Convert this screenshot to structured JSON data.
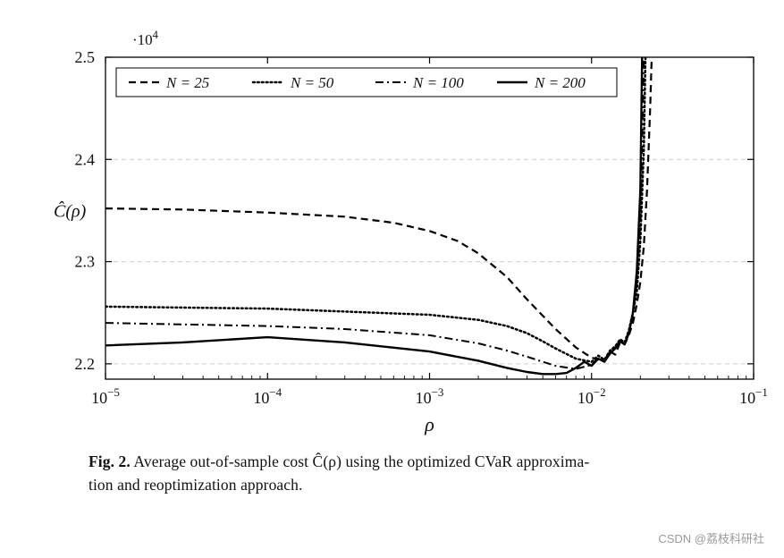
{
  "chart_data": {
    "type": "line",
    "title": "",
    "xlabel": "ρ",
    "ylabel": "Ĉ(ρ)",
    "y_multiplier": {
      "base": "·10",
      "exp": "4"
    },
    "x_scale": "log",
    "xlim": [
      1e-05,
      0.1
    ],
    "ylim": [
      2.185,
      2.5
    ],
    "x_tick_exponents": [
      -5,
      -4,
      -3,
      -2,
      -1
    ],
    "y_ticks": [
      2.2,
      2.3,
      2.4,
      2.5
    ],
    "grid_y": [
      2.2,
      2.3,
      2.4
    ],
    "grid_color": "#cccccc",
    "line_color": "#000000",
    "legend_position": "top-inside",
    "series": [
      {
        "name": "N = 25",
        "dash": "dashed",
        "points": [
          [
            1e-05,
            2.352
          ],
          [
            3e-05,
            2.351
          ],
          [
            0.0001,
            2.348
          ],
          [
            0.0003,
            2.344
          ],
          [
            0.0006,
            2.338
          ],
          [
            0.001,
            2.33
          ],
          [
            0.0015,
            2.32
          ],
          [
            0.002,
            2.308
          ],
          [
            0.003,
            2.285
          ],
          [
            0.004,
            2.263
          ],
          [
            0.005,
            2.247
          ],
          [
            0.006,
            2.234
          ],
          [
            0.008,
            2.216
          ],
          [
            0.01,
            2.206
          ],
          [
            0.012,
            2.203
          ],
          [
            0.013,
            2.212
          ],
          [
            0.014,
            2.209
          ],
          [
            0.015,
            2.221
          ],
          [
            0.016,
            2.219
          ],
          [
            0.017,
            2.228
          ],
          [
            0.018,
            2.24
          ],
          [
            0.019,
            2.258
          ],
          [
            0.02,
            2.28
          ],
          [
            0.021,
            2.315
          ],
          [
            0.022,
            2.37
          ],
          [
            0.023,
            2.45
          ],
          [
            0.0235,
            2.5
          ]
        ]
      },
      {
        "name": "N = 50",
        "dash": "dotted",
        "points": [
          [
            1e-05,
            2.256
          ],
          [
            0.0001,
            2.254
          ],
          [
            0.001,
            2.248
          ],
          [
            0.002,
            2.243
          ],
          [
            0.003,
            2.237
          ],
          [
            0.004,
            2.23
          ],
          [
            0.005,
            2.222
          ],
          [
            0.006,
            2.215
          ],
          [
            0.008,
            2.205
          ],
          [
            0.01,
            2.202
          ],
          [
            0.011,
            2.208
          ],
          [
            0.012,
            2.204
          ],
          [
            0.013,
            2.213
          ],
          [
            0.014,
            2.217
          ],
          [
            0.015,
            2.224
          ],
          [
            0.016,
            2.221
          ],
          [
            0.017,
            2.233
          ],
          [
            0.018,
            2.25
          ],
          [
            0.019,
            2.27
          ],
          [
            0.02,
            2.32
          ],
          [
            0.021,
            2.41
          ],
          [
            0.0215,
            2.5
          ]
        ]
      },
      {
        "name": "N = 100",
        "dash": "dashdot",
        "points": [
          [
            1e-05,
            2.24
          ],
          [
            0.0001,
            2.237
          ],
          [
            0.0003,
            2.234
          ],
          [
            0.001,
            2.228
          ],
          [
            0.002,
            2.22
          ],
          [
            0.003,
            2.213
          ],
          [
            0.004,
            2.207
          ],
          [
            0.005,
            2.202
          ],
          [
            0.006,
            2.198
          ],
          [
            0.008,
            2.195
          ],
          [
            0.01,
            2.199
          ],
          [
            0.011,
            2.206
          ],
          [
            0.012,
            2.203
          ],
          [
            0.013,
            2.212
          ],
          [
            0.014,
            2.216
          ],
          [
            0.015,
            2.223
          ],
          [
            0.016,
            2.22
          ],
          [
            0.017,
            2.232
          ],
          [
            0.018,
            2.248
          ],
          [
            0.019,
            2.28
          ],
          [
            0.02,
            2.34
          ],
          [
            0.0205,
            2.42
          ],
          [
            0.021,
            2.5
          ]
        ]
      },
      {
        "name": "N = 200",
        "dash": "solid",
        "points": [
          [
            1e-05,
            2.218
          ],
          [
            3e-05,
            2.221
          ],
          [
            0.0001,
            2.226
          ],
          [
            0.0003,
            2.221
          ],
          [
            0.001,
            2.212
          ],
          [
            0.002,
            2.203
          ],
          [
            0.003,
            2.196
          ],
          [
            0.004,
            2.192
          ],
          [
            0.005,
            2.19
          ],
          [
            0.006,
            2.19
          ],
          [
            0.007,
            2.191
          ],
          [
            0.008,
            2.196
          ],
          [
            0.009,
            2.202
          ],
          [
            0.01,
            2.198
          ],
          [
            0.011,
            2.205
          ],
          [
            0.012,
            2.202
          ],
          [
            0.013,
            2.21
          ],
          [
            0.014,
            2.215
          ],
          [
            0.015,
            2.222
          ],
          [
            0.016,
            2.219
          ],
          [
            0.017,
            2.23
          ],
          [
            0.018,
            2.25
          ],
          [
            0.019,
            2.29
          ],
          [
            0.02,
            2.37
          ],
          [
            0.0205,
            2.5
          ]
        ]
      }
    ]
  },
  "caption": {
    "label": "Fig. 2.",
    "line1": "Average out-of-sample cost Ĉ(ρ) using the optimized CVaR approxima-",
    "line2": "tion and reoptimization approach."
  },
  "watermark": "CSDN @荔枝科研社"
}
